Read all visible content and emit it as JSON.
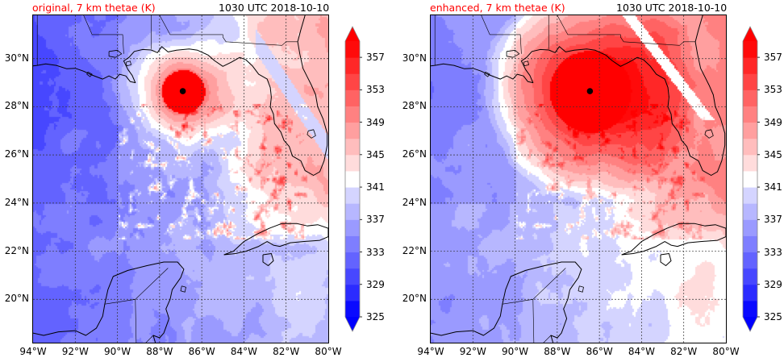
{
  "figure": {
    "panels": [
      {
        "id": "original",
        "title": "original, 7 km thetae (K)",
        "timestamp": "1030 UTC 2018-10-10",
        "title_color": "#ff0000",
        "storm_center": {
          "lon": -86.9,
          "lat": 28.65
        },
        "field_params": {
          "core_radius_deg": 0.9,
          "outer_radius_deg": 3.2,
          "core_value": 359,
          "band_strength": 0.0,
          "cell_density": 1.0
        }
      },
      {
        "id": "enhanced",
        "title": "enhanced, 7 km thetae (K)",
        "timestamp": "1030 UTC 2018-10-10",
        "title_color": "#ff0000",
        "storm_center": {
          "lon": -86.45,
          "lat": 28.65
        },
        "field_params": {
          "core_radius_deg": 1.7,
          "outer_radius_deg": 4.6,
          "core_value": 360,
          "band_strength": 1.0,
          "cell_density": 0.7
        }
      }
    ],
    "extent": {
      "lon_min": -94,
      "lon_max": -80,
      "lat_min": 18.2,
      "lat_max": 31.8
    },
    "x_ticks": [
      {
        "lon": -94,
        "label": "94°W"
      },
      {
        "lon": -92,
        "label": "92°W"
      },
      {
        "lon": -90,
        "label": "90°W"
      },
      {
        "lon": -88,
        "label": "88°W"
      },
      {
        "lon": -86,
        "label": "86°W"
      },
      {
        "lon": -84,
        "label": "84°W"
      },
      {
        "lon": -82,
        "label": "82°W"
      },
      {
        "lon": -80,
        "label": "80°W"
      }
    ],
    "y_ticks": [
      {
        "lat": 30,
        "label": "30°N"
      },
      {
        "lat": 28,
        "label": "28°N"
      },
      {
        "lat": 26,
        "label": "26°N"
      },
      {
        "lat": 24,
        "label": "24°N"
      },
      {
        "lat": 22,
        "label": "22°N"
      },
      {
        "lat": 20,
        "label": "20°N"
      }
    ],
    "colorbar": {
      "units": "K",
      "levels": [
        325,
        327,
        329,
        331,
        333,
        335,
        337,
        339,
        341,
        343,
        345,
        347,
        349,
        351,
        353,
        355,
        357,
        359
      ],
      "tick_labels": [
        "325",
        "329",
        "333",
        "337",
        "341",
        "345",
        "349",
        "353",
        "357"
      ],
      "tick_values": [
        325,
        329,
        333,
        337,
        341,
        345,
        349,
        353,
        357
      ],
      "colors": [
        "#0a0aff",
        "#2b2bff",
        "#4747ff",
        "#6363ff",
        "#7e7eff",
        "#9a9aff",
        "#b7b7ff",
        "#d4d4ff",
        "#ffffff",
        "#ffdcdc",
        "#ffbdbd",
        "#ff9f9f",
        "#ff8181",
        "#ff6363",
        "#ff4545",
        "#ff2727",
        "#ff0a0a"
      ],
      "under_color": "#0000ff",
      "over_color": "#ff0000",
      "extend": "both"
    },
    "coastlines": {
      "us_gulf_coast": [
        [
          -94,
          29.7
        ],
        [
          -93.8,
          29.72
        ],
        [
          -93.4,
          29.78
        ],
        [
          -92.9,
          29.72
        ],
        [
          -92.4,
          29.58
        ],
        [
          -92.0,
          29.6
        ],
        [
          -91.6,
          29.48
        ],
        [
          -91.3,
          29.35
        ],
        [
          -91.0,
          29.25
        ],
        [
          -90.7,
          29.15
        ],
        [
          -90.4,
          29.28
        ],
        [
          -90.1,
          29.15
        ],
        [
          -89.9,
          29.35
        ],
        [
          -89.6,
          29.28
        ],
        [
          -89.4,
          29.05
        ],
        [
          -89.15,
          29.0
        ],
        [
          -89.3,
          29.3
        ],
        [
          -89.5,
          29.55
        ],
        [
          -89.7,
          29.9
        ],
        [
          -89.45,
          30.05
        ],
        [
          -89.2,
          30.3
        ],
        [
          -88.8,
          30.38
        ],
        [
          -88.4,
          30.36
        ],
        [
          -88.1,
          30.25
        ],
        [
          -87.9,
          30.5
        ],
        [
          -87.6,
          30.28
        ],
        [
          -87.2,
          30.35
        ],
        [
          -86.6,
          30.4
        ],
        [
          -86.2,
          30.35
        ],
        [
          -85.7,
          30.15
        ],
        [
          -85.4,
          29.92
        ],
        [
          -85.0,
          29.68
        ],
        [
          -84.6,
          29.85
        ],
        [
          -84.2,
          30.05
        ],
        [
          -83.9,
          29.95
        ],
        [
          -83.6,
          29.7
        ],
        [
          -83.3,
          29.35
        ],
        [
          -82.9,
          29.15
        ],
        [
          -82.75,
          28.8
        ],
        [
          -82.7,
          28.4
        ],
        [
          -82.75,
          28.0
        ],
        [
          -82.6,
          27.7
        ],
        [
          -82.55,
          27.3
        ],
        [
          -82.25,
          26.95
        ],
        [
          -82.1,
          26.6
        ],
        [
          -81.85,
          26.35
        ],
        [
          -81.7,
          25.95
        ],
        [
          -81.3,
          25.75
        ],
        [
          -81.1,
          25.35
        ],
        [
          -80.7,
          25.15
        ],
        [
          -80.4,
          25.3
        ],
        [
          -80.2,
          25.75
        ],
        [
          -80.05,
          26.4
        ],
        [
          -80.05,
          26.9
        ],
        [
          -80.25,
          27.5
        ],
        [
          -80.5,
          28.0
        ],
        [
          -80.6,
          28.5
        ],
        [
          -80.8,
          28.9
        ],
        [
          -81.2,
          29.6
        ],
        [
          -81.35,
          30.2
        ],
        [
          -81.45,
          30.7
        ],
        [
          -81.3,
          31.2
        ],
        [
          -81.1,
          31.8
        ]
      ],
      "state_borders": [
        [
          [
            -93.8,
            31.8
          ],
          [
            -93.8,
            29.72
          ]
        ],
        [
          [
            -91.6,
            31.8
          ],
          [
            -91.2,
            31.0
          ],
          [
            -89.75,
            31.0
          ],
          [
            -89.7,
            30.2
          ]
        ],
        [
          [
            -88.4,
            31.8
          ],
          [
            -88.4,
            30.4
          ]
        ],
        [
          [
            -88.0,
            31.8
          ],
          [
            -87.5,
            31.0
          ],
          [
            -85.0,
            31.0
          ],
          [
            -85.0,
            30.9
          ],
          [
            -84.85,
            30.7
          ],
          [
            -82.2,
            30.55
          ],
          [
            -82.0,
            30.7
          ],
          [
            -81.45,
            30.7
          ]
        ]
      ],
      "lakes": [
        [
          [
            -90.4,
            30.3
          ],
          [
            -90.0,
            30.35
          ],
          [
            -89.8,
            30.2
          ],
          [
            -90.1,
            30.05
          ],
          [
            -90.4,
            30.1
          ],
          [
            -90.4,
            30.3
          ]
        ],
        [
          [
            -80.95,
            27.0
          ],
          [
            -80.7,
            27.05
          ],
          [
            -80.6,
            26.8
          ],
          [
            -80.8,
            26.7
          ],
          [
            -81.0,
            26.85
          ],
          [
            -80.95,
            27.0
          ]
        ]
      ],
      "cuba": [
        [
          -84.95,
          21.85
        ],
        [
          -84.5,
          22.0
        ],
        [
          -84.0,
          22.4
        ],
        [
          -83.4,
          22.7
        ],
        [
          -82.8,
          22.95
        ],
        [
          -82.2,
          23.15
        ],
        [
          -81.5,
          23.15
        ],
        [
          -81.0,
          23.05
        ],
        [
          -80.5,
          23.1
        ],
        [
          -80.0,
          22.95
        ],
        [
          -80.0,
          22.6
        ],
        [
          -80.4,
          22.45
        ],
        [
          -81.2,
          22.4
        ],
        [
          -81.8,
          22.35
        ],
        [
          -82.3,
          22.2
        ],
        [
          -82.6,
          22.25
        ],
        [
          -82.9,
          22.4
        ],
        [
          -83.3,
          22.2
        ],
        [
          -83.9,
          22.0
        ],
        [
          -84.4,
          21.9
        ],
        [
          -84.95,
          21.85
        ]
      ],
      "isla_juventud": [
        [
          -83.1,
          21.85
        ],
        [
          -82.7,
          21.9
        ],
        [
          -82.6,
          21.6
        ],
        [
          -82.85,
          21.4
        ],
        [
          -83.1,
          21.55
        ],
        [
          -83.1,
          21.85
        ]
      ],
      "yucatan": [
        [
          -94,
          18.6
        ],
        [
          -93.5,
          18.5
        ],
        [
          -92.8,
          18.65
        ],
        [
          -92.0,
          18.7
        ],
        [
          -91.5,
          18.5
        ],
        [
          -91.0,
          18.8
        ],
        [
          -90.7,
          19.3
        ],
        [
          -90.6,
          19.8
        ],
        [
          -90.45,
          20.4
        ],
        [
          -90.2,
          20.95
        ],
        [
          -89.5,
          21.2
        ],
        [
          -88.6,
          21.4
        ],
        [
          -87.8,
          21.55
        ],
        [
          -87.15,
          21.55
        ],
        [
          -86.85,
          21.25
        ],
        [
          -87.0,
          20.9
        ],
        [
          -87.4,
          20.4
        ],
        [
          -87.5,
          20.0
        ],
        [
          -87.7,
          19.6
        ],
        [
          -87.55,
          19.2
        ],
        [
          -87.8,
          18.6
        ],
        [
          -88.0,
          18.4
        ],
        [
          -88.3,
          18.5
        ],
        [
          -88.2,
          18.2
        ]
      ],
      "cozumel": [
        [
          -86.95,
          20.55
        ],
        [
          -86.75,
          20.5
        ],
        [
          -86.8,
          20.3
        ],
        [
          -87.0,
          20.35
        ],
        [
          -86.95,
          20.55
        ]
      ],
      "mexico_borders": [
        [
          [
            -90.6,
            19.8
          ],
          [
            -89.15,
            20.0
          ],
          [
            -89.1,
            17.8
          ]
        ],
        [
          [
            -89.15,
            20.0
          ],
          [
            -87.6,
            21.3
          ]
        ],
        [
          [
            -89.1,
            17.8
          ],
          [
            -88.3,
            18.5
          ]
        ]
      ],
      "gulf_islands": [
        [
          [
            -91.4,
            29.45
          ],
          [
            -91.2,
            29.35
          ],
          [
            -91.3,
            29.25
          ],
          [
            -91.45,
            29.35
          ],
          [
            -91.4,
            29.45
          ]
        ],
        [
          [
            -89.6,
            29.85
          ],
          [
            -89.4,
            29.9
          ],
          [
            -89.35,
            29.75
          ],
          [
            -89.55,
            29.7
          ],
          [
            -89.6,
            29.85
          ]
        ]
      ]
    }
  }
}
